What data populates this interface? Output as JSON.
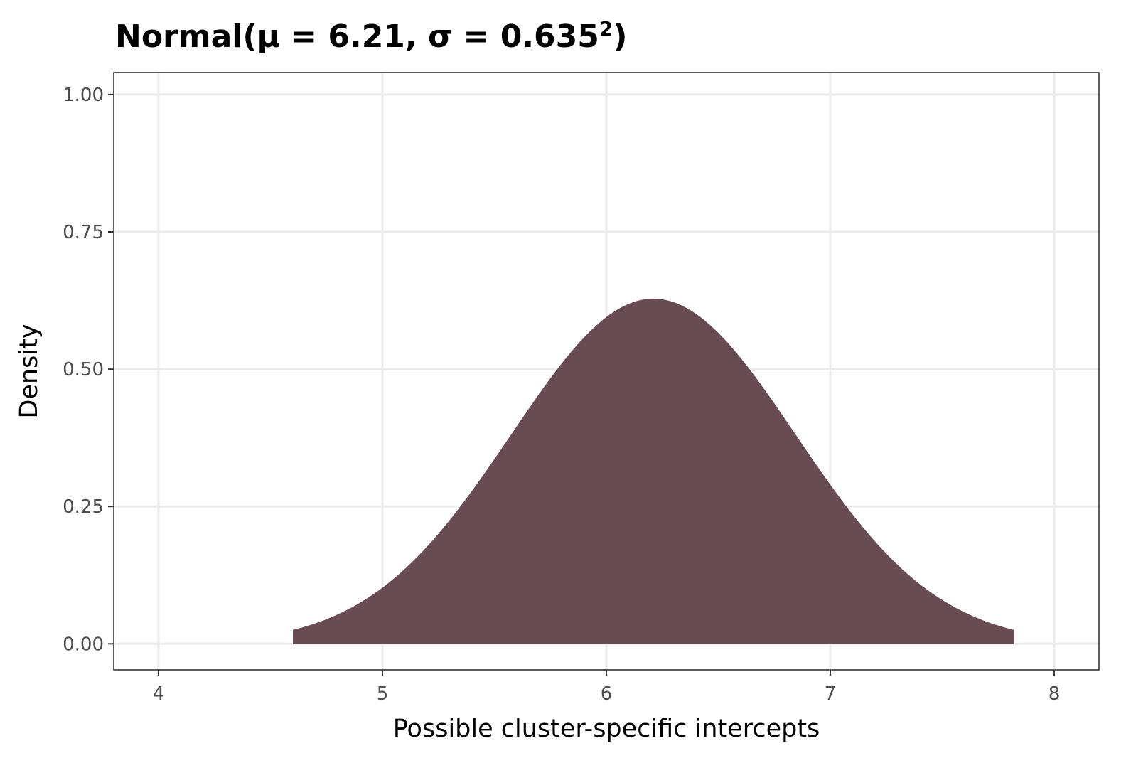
{
  "chart_data": {
    "type": "area",
    "title": "Normal(μ = 6.21, σ = 0.635",
    "title_superscript": "2",
    "title_suffix": ")",
    "xlabel": "Possible cluster-specific intercepts",
    "ylabel": "Density",
    "distribution": "normal",
    "mu": 6.21,
    "sigma": 0.635,
    "x_range_of_curve": [
      4.6,
      7.82
    ],
    "xlim": [
      3.8,
      8.2
    ],
    "ylim": [
      -0.0475,
      1.04
    ],
    "x_ticks": [
      4,
      5,
      6,
      7,
      8
    ],
    "x_tick_labels": [
      "4",
      "5",
      "6",
      "7",
      "8"
    ],
    "y_ticks": [
      0,
      0.25,
      0.5,
      0.75,
      1.0
    ],
    "y_tick_labels": [
      "0.00",
      "0.25",
      "0.50",
      "0.75",
      "1.00"
    ],
    "fill_color": "#684b53",
    "grid": true,
    "legend": "none"
  }
}
